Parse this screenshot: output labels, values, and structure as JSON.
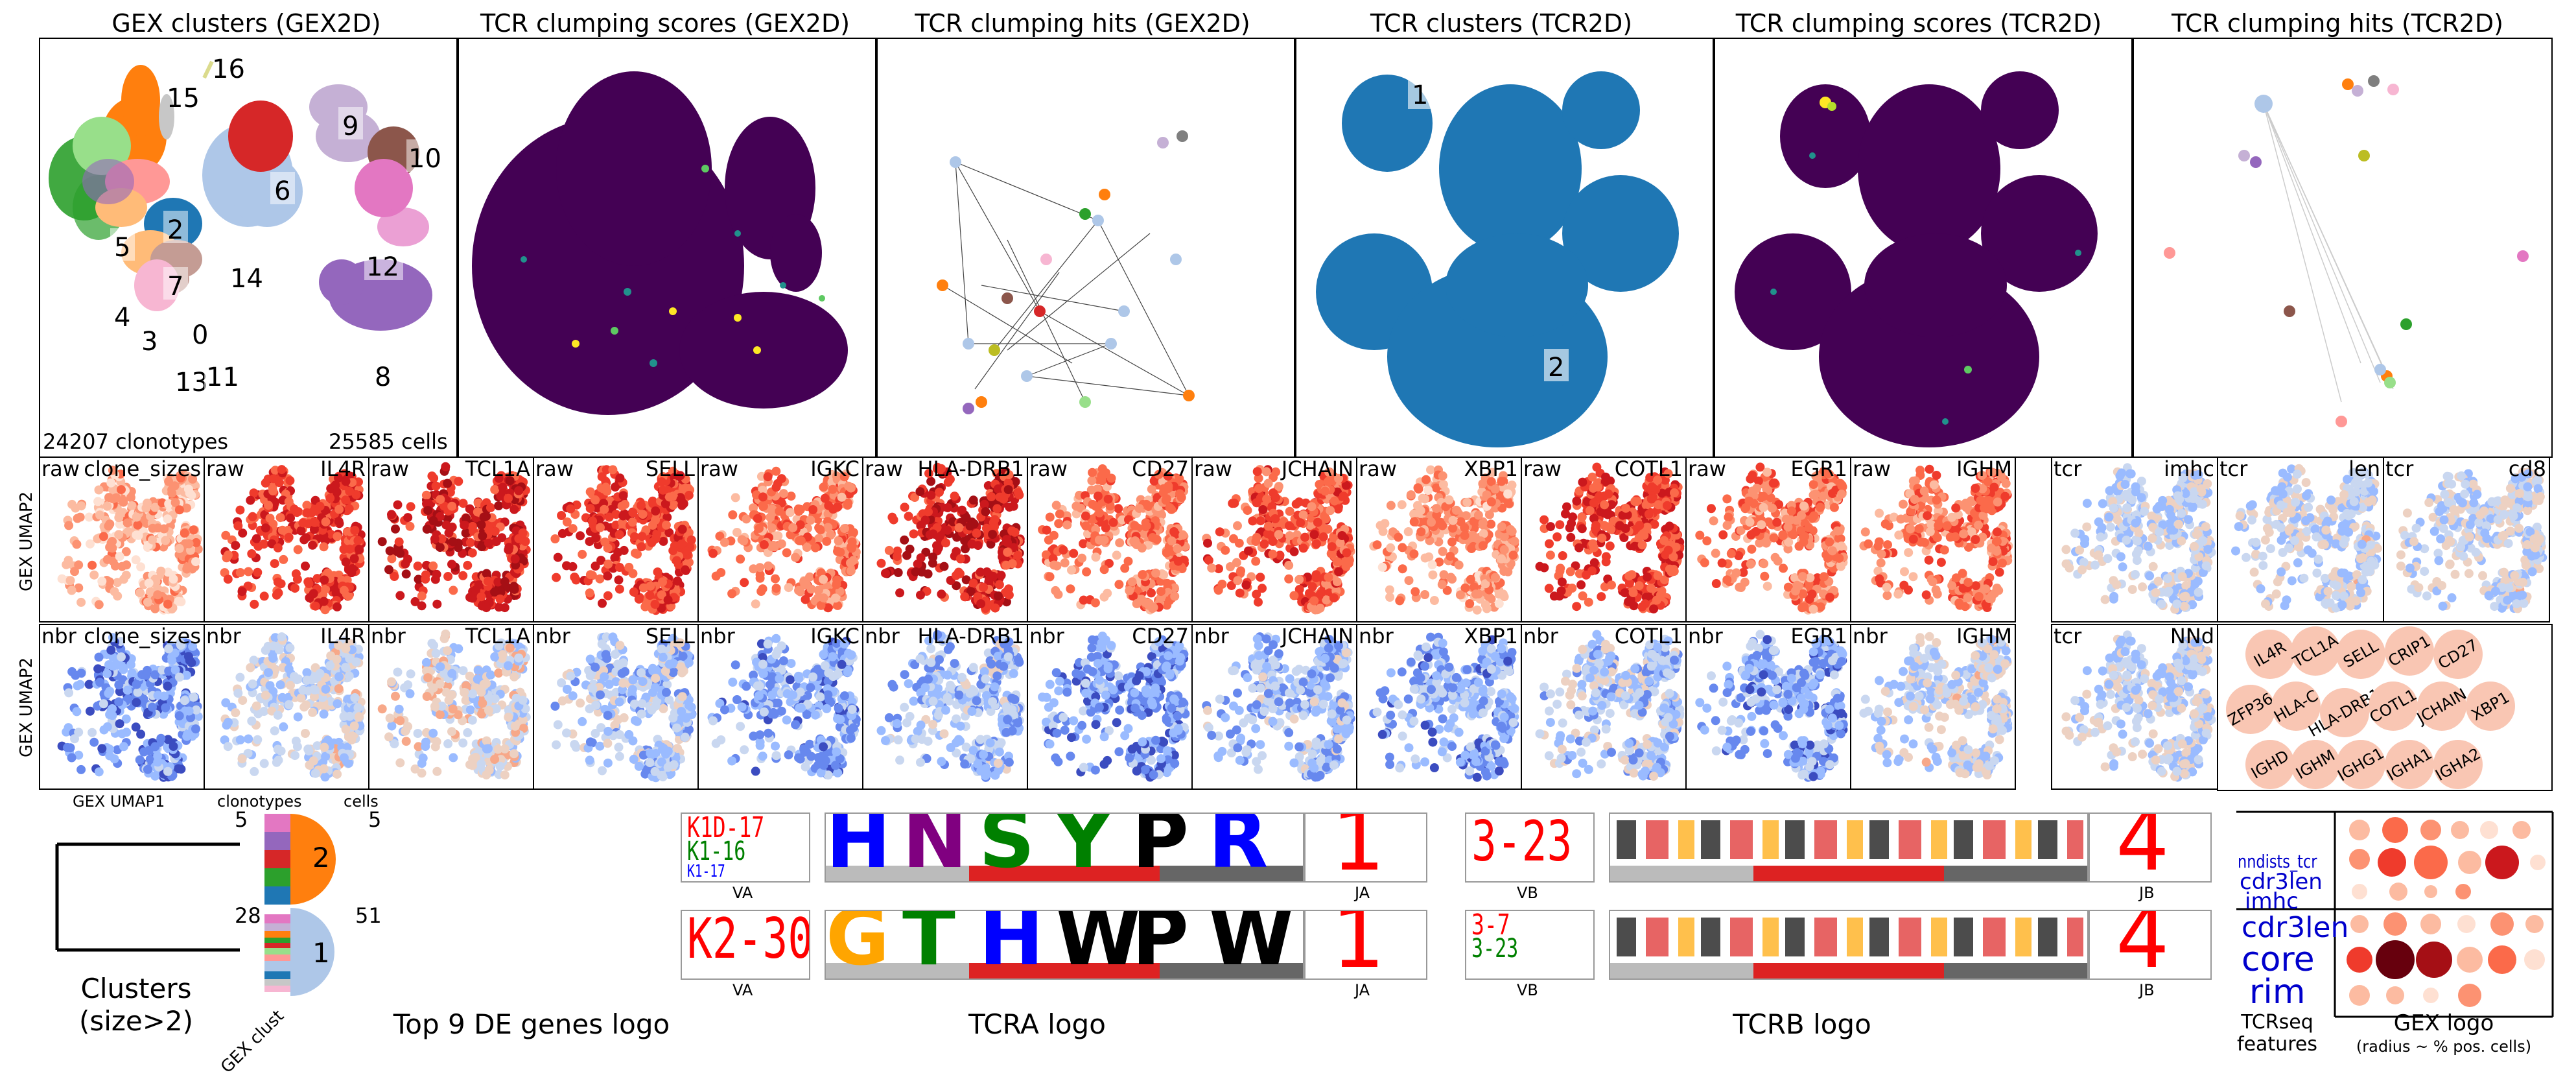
{
  "chart_data": [
    {
      "type": "scatter",
      "title": "GEX clusters (GEX2D)",
      "cluster_labels": [
        "16",
        "15",
        "9",
        "10",
        "6",
        "2",
        "5",
        "7",
        "14",
        "12",
        "4",
        "3",
        "0",
        "13",
        "11",
        "8"
      ],
      "cluster_colors": {
        "0": "#1f77b4",
        "1": "#aec7e8",
        "2": "#ff7f0e",
        "3": "#ffbb78",
        "4": "#2ca02c",
        "5": "#98df8a",
        "6": "#d62728",
        "7": "#ff9896",
        "8": "#9467bd",
        "9": "#c5b0d5",
        "10": "#8c564b",
        "11": "#c49c94",
        "12": "#e377c2",
        "13": "#f7b6d2",
        "14": "#c7c7c7",
        "15": "#bcbd22",
        "16": "#dbdb8d"
      },
      "annotations": [
        "24207 clonotypes",
        "25585 cells"
      ]
    },
    {
      "type": "scatter",
      "title": "TCR clumping scores (GEX2D)"
    },
    {
      "type": "scatter",
      "title": "TCR clumping hits (GEX2D)"
    },
    {
      "type": "scatter",
      "title": "TCR clusters (TCR2D)",
      "cluster_labels": [
        "1",
        "2"
      ],
      "cluster_colors": {
        "1": "#aec7e8",
        "2": "#1f77b4"
      }
    },
    {
      "type": "scatter",
      "title": "TCR clumping scores (TCR2D)"
    },
    {
      "type": "scatter",
      "title": "TCR clumping hits (TCR2D)"
    }
  ],
  "raw_row": {
    "ylabel": "GEX UMAP2",
    "panels": [
      {
        "left": "raw",
        "right": "clone_sizes"
      },
      {
        "left": "raw",
        "right": "IL4R"
      },
      {
        "left": "raw",
        "right": "TCL1A"
      },
      {
        "left": "raw",
        "right": "SELL"
      },
      {
        "left": "raw",
        "right": "IGKC"
      },
      {
        "left": "raw",
        "right": "HLA-DRB1"
      },
      {
        "left": "raw",
        "right": "CD27"
      },
      {
        "left": "raw",
        "right": "JCHAIN"
      },
      {
        "left": "raw",
        "right": "XBP1"
      },
      {
        "left": "raw",
        "right": "COTL1"
      },
      {
        "left": "raw",
        "right": "EGR1"
      },
      {
        "left": "raw",
        "right": "IGHM"
      }
    ],
    "tcr_panels": [
      {
        "left": "tcr",
        "right": "imhc"
      },
      {
        "left": "tcr",
        "right": "len"
      },
      {
        "left": "tcr",
        "right": "cd8"
      }
    ]
  },
  "nbr_row": {
    "ylabel": "GEX UMAP2",
    "xlabel": "GEX UMAP1",
    "panels": [
      {
        "left": "nbr",
        "right": "clone_sizes"
      },
      {
        "left": "nbr",
        "right": "IL4R"
      },
      {
        "left": "nbr",
        "right": "TCL1A"
      },
      {
        "left": "nbr",
        "right": "SELL"
      },
      {
        "left": "nbr",
        "right": "IGKC"
      },
      {
        "left": "nbr",
        "right": "HLA-DRB1"
      },
      {
        "left": "nbr",
        "right": "CD27"
      },
      {
        "left": "nbr",
        "right": "JCHAIN"
      },
      {
        "left": "nbr",
        "right": "XBP1"
      },
      {
        "left": "nbr",
        "right": "COTL1"
      },
      {
        "left": "nbr",
        "right": "EGR1"
      },
      {
        "left": "nbr",
        "right": "IGHM"
      }
    ],
    "tcr_panels": [
      {
        "left": "tcr",
        "right": "NNd"
      }
    ],
    "gene_bubbles": [
      "IL4R",
      "TCL1A",
      "SELL",
      "CRIP1",
      "CD27",
      "ZFP36",
      "HLA-C",
      "HLA-DRB1",
      "COTL1",
      "JCHAIN",
      "XBP1",
      "IGHD",
      "IGHM",
      "IGHG1",
      "IGHA1",
      "IGHA2"
    ]
  },
  "bottom": {
    "dendrogram_caption": "Clusters\n(size>2)",
    "col_header_clonotypes": "clonotypes",
    "col_header_cells": "cells",
    "rows": [
      {
        "clonotypes": "5",
        "cells": "5",
        "gex_cluster": "2",
        "color": "#ff7f0e"
      },
      {
        "clonotypes": "28",
        "cells": "51",
        "gex_cluster": "1",
        "color": "#aec7e8"
      }
    ],
    "gex_clust_label": "GEX clust",
    "de_caption": "Top 9 DE genes logo",
    "tcra": {
      "caption": "TCRA logo",
      "rows": [
        {
          "v_genes": [
            "K1D-17",
            "K1-16",
            "K1-17"
          ],
          "v_label": "VA",
          "cdr3": [
            "H",
            "N",
            "S",
            "Y",
            "P",
            "R"
          ],
          "j": "1",
          "j_label": "JA"
        },
        {
          "v_genes": [
            "K2-30"
          ],
          "v_label": "VA",
          "cdr3": [
            "G",
            "T",
            "H",
            "W",
            "P",
            "W"
          ],
          "j": "1",
          "j_label": "JA"
        }
      ]
    },
    "tcrb": {
      "caption": "TCRB logo",
      "rows": [
        {
          "v_genes": [
            "3-23"
          ],
          "v_label": "VB",
          "j": "4",
          "j_label": "JB"
        },
        {
          "v_genes": [
            "3-7",
            "3-23"
          ],
          "v_label": "VB",
          "j": "4",
          "j_label": "JB"
        }
      ]
    },
    "tcrseq_features": {
      "caption": "TCRseq\nfeatures",
      "row1": [
        "nndists_tcr",
        "cdr3len",
        "imhc"
      ],
      "row2": [
        "cdr3len",
        "core",
        "rim"
      ]
    },
    "gex_logo": {
      "caption": "GEX logo",
      "subcaption": "(radius ~ % pos. cells)"
    }
  }
}
